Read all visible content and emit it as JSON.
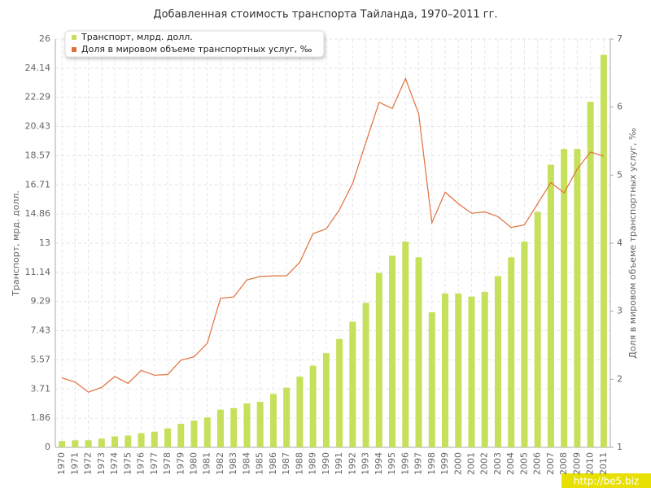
{
  "chart_data": {
    "type": "bar-line",
    "title": "Добавленная стоимость транспорта Тайланда, 1970–2011 гг.",
    "y_label": "Транспорт, мрд. долл.",
    "y2_label": "Доля в мировом объеме транспортных услуг, ‰",
    "watermark": "http://be5.biz",
    "categories": [
      "1970",
      "1971",
      "1972",
      "1973",
      "1974",
      "1975",
      "1976",
      "1977",
      "1978",
      "1979",
      "1980",
      "1981",
      "1982",
      "1983",
      "1984",
      "1985",
      "1986",
      "1987",
      "1988",
      "1989",
      "1990",
      "1991",
      "1992",
      "1993",
      "1994",
      "1995",
      "1996",
      "1997",
      "1998",
      "1999",
      "2000",
      "2001",
      "2002",
      "2003",
      "2004",
      "2005",
      "2006",
      "2007",
      "2008",
      "2009",
      "2010",
      "2011"
    ],
    "series": [
      {
        "name": "Транспорт, млрд. долл.",
        "type": "bar",
        "color": "#c5e05a",
        "values": [
          0.4,
          0.45,
          0.45,
          0.55,
          0.7,
          0.75,
          0.9,
          1.0,
          1.2,
          1.5,
          1.7,
          1.9,
          2.4,
          2.5,
          2.8,
          2.9,
          3.4,
          3.8,
          4.5,
          5.2,
          6.0,
          6.9,
          8.0,
          9.2,
          11.1,
          12.2,
          13.1,
          12.1,
          8.6,
          9.8,
          9.8,
          9.6,
          9.9,
          10.9,
          12.1,
          13.1,
          15.0,
          18.0,
          19.0,
          19.0,
          22.0,
          25.0
        ]
      },
      {
        "name": "Доля в мировом объеме транспортных услуг, ‰",
        "type": "line",
        "axis": "y2",
        "color": "#e0703a",
        "values": [
          2.02,
          1.96,
          1.81,
          1.88,
          2.04,
          1.94,
          2.13,
          2.06,
          2.07,
          2.28,
          2.33,
          2.53,
          3.19,
          3.21,
          3.46,
          3.51,
          3.52,
          3.52,
          3.72,
          4.14,
          4.21,
          4.49,
          4.88,
          5.48,
          6.07,
          5.98,
          6.42,
          5.9,
          4.3,
          4.75,
          4.58,
          4.44,
          4.46,
          4.39,
          4.23,
          4.27,
          4.58,
          4.89,
          4.74,
          5.09,
          5.34,
          5.28
        ]
      }
    ],
    "ylim": [
      0,
      26
    ],
    "yticks": [
      0,
      1.86,
      3.71,
      5.57,
      7.43,
      9.29,
      11.14,
      13,
      14.86,
      16.71,
      18.57,
      20.43,
      22.29,
      24.14,
      26
    ],
    "y2lim": [
      1,
      7
    ],
    "y2ticks": [
      1,
      2,
      3,
      4,
      5,
      6,
      7
    ],
    "grid": true
  }
}
